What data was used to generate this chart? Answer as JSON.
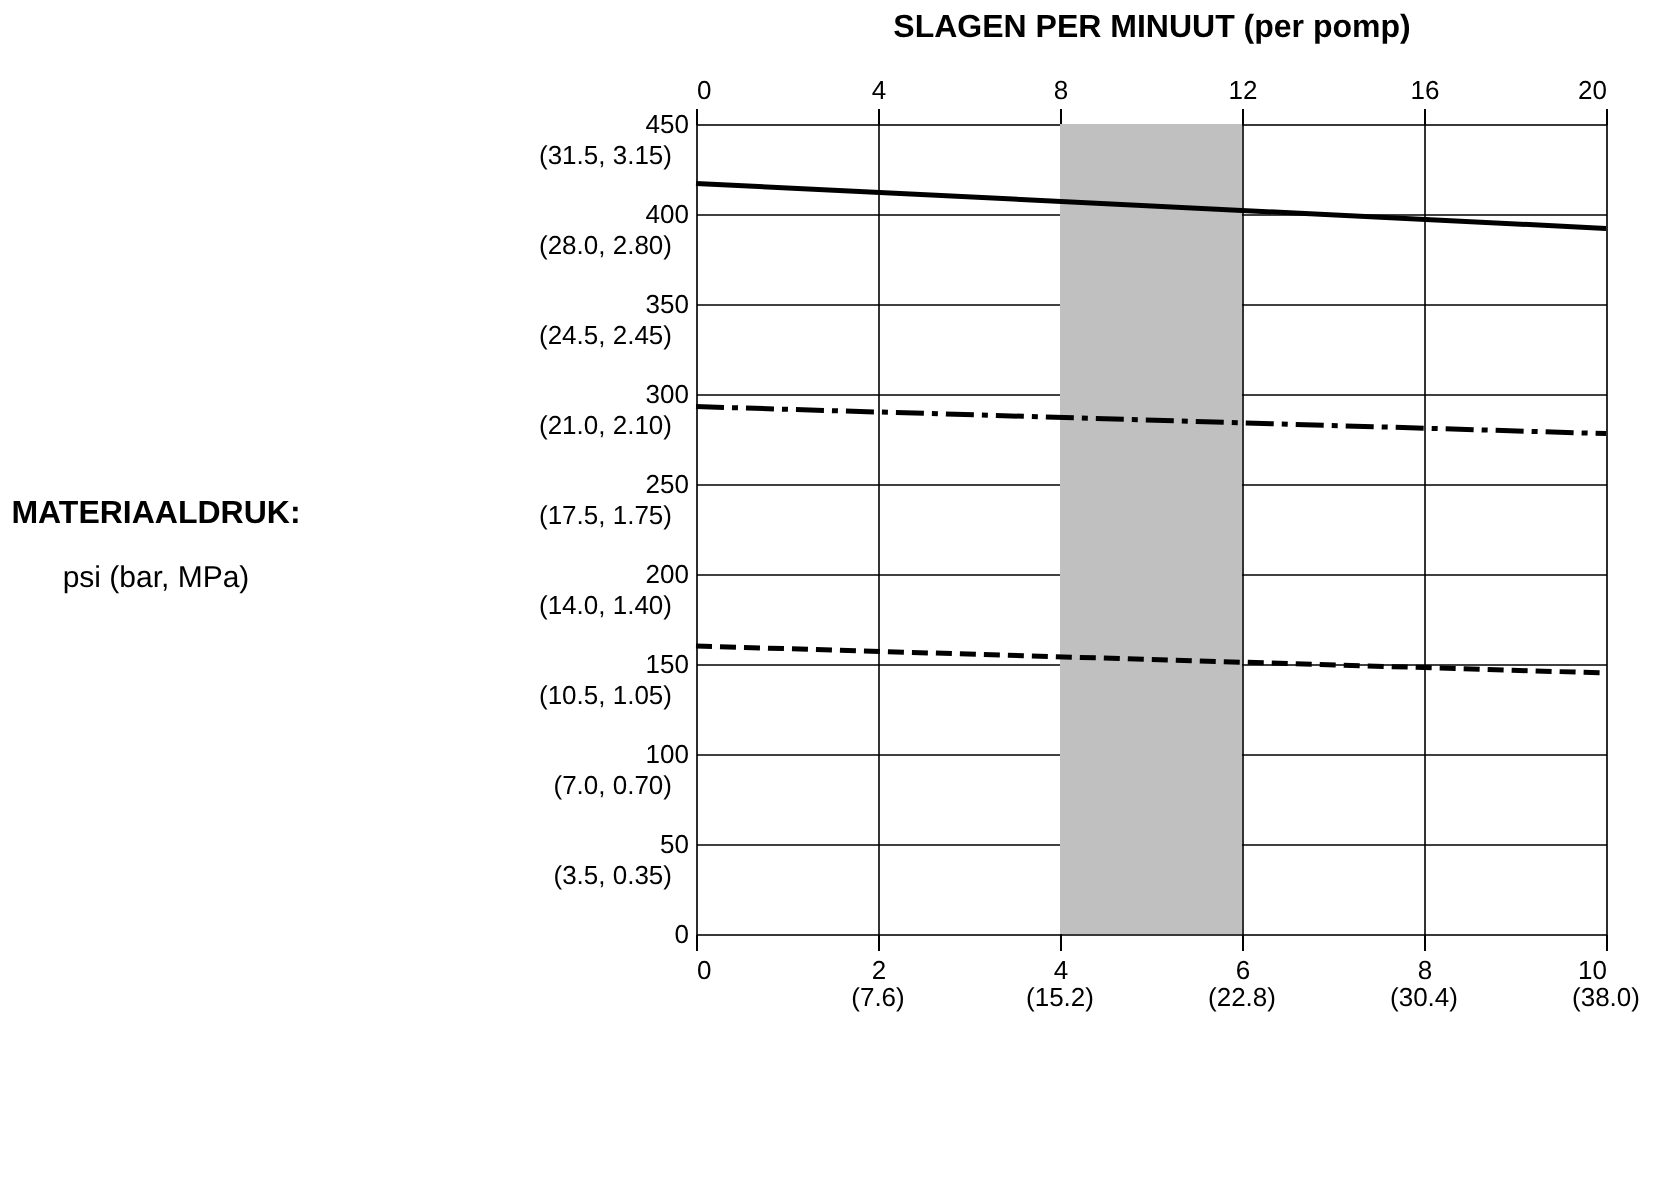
{
  "chart_data": {
    "type": "line",
    "x2label": "SLAGEN PER MINUUT (per pomp)",
    "annotations": [
      "MATERIAALDRUK:",
      "psi (bar, MPa)",
      "(7.6)",
      "(15.2)",
      "(22.8)",
      "(30.4)",
      "(38.0)",
      "(3.5, 0.35)",
      "(7.0, 0.70)",
      "(10.5, 1.05)",
      "(14.0, 1.40)",
      "(17.5, 1.75)",
      "(21.0, 2.10)",
      "(24.5, 2.45)",
      "(28.0, 2.80)",
      "(31.5, 3.15)"
    ],
    "xlim": [
      0,
      10
    ],
    "xticks": [
      0,
      2,
      4,
      6,
      8,
      10
    ],
    "x2lim": [
      0,
      20
    ],
    "x2ticks": [
      0,
      4,
      8,
      12,
      16,
      20
    ],
    "ylim": [
      0,
      450
    ],
    "yticks": [
      0,
      50,
      100,
      150,
      200,
      250,
      300,
      350,
      400,
      450
    ],
    "grid": true,
    "x": [
      0,
      10
    ],
    "series": [
      {
        "color": "#000000",
        "line_style": "solid",
        "values": [
          417,
          392
        ]
      },
      {
        "color": "#000000",
        "line_style": "dashdot",
        "values": [
          293,
          278
        ]
      },
      {
        "color": "#000000",
        "line_style": "dashed",
        "values": [
          160,
          145
        ]
      }
    ],
    "bands": [
      {
        "axis": "x",
        "from": 4,
        "to": 6,
        "color": "#c0c0c0"
      }
    ]
  }
}
